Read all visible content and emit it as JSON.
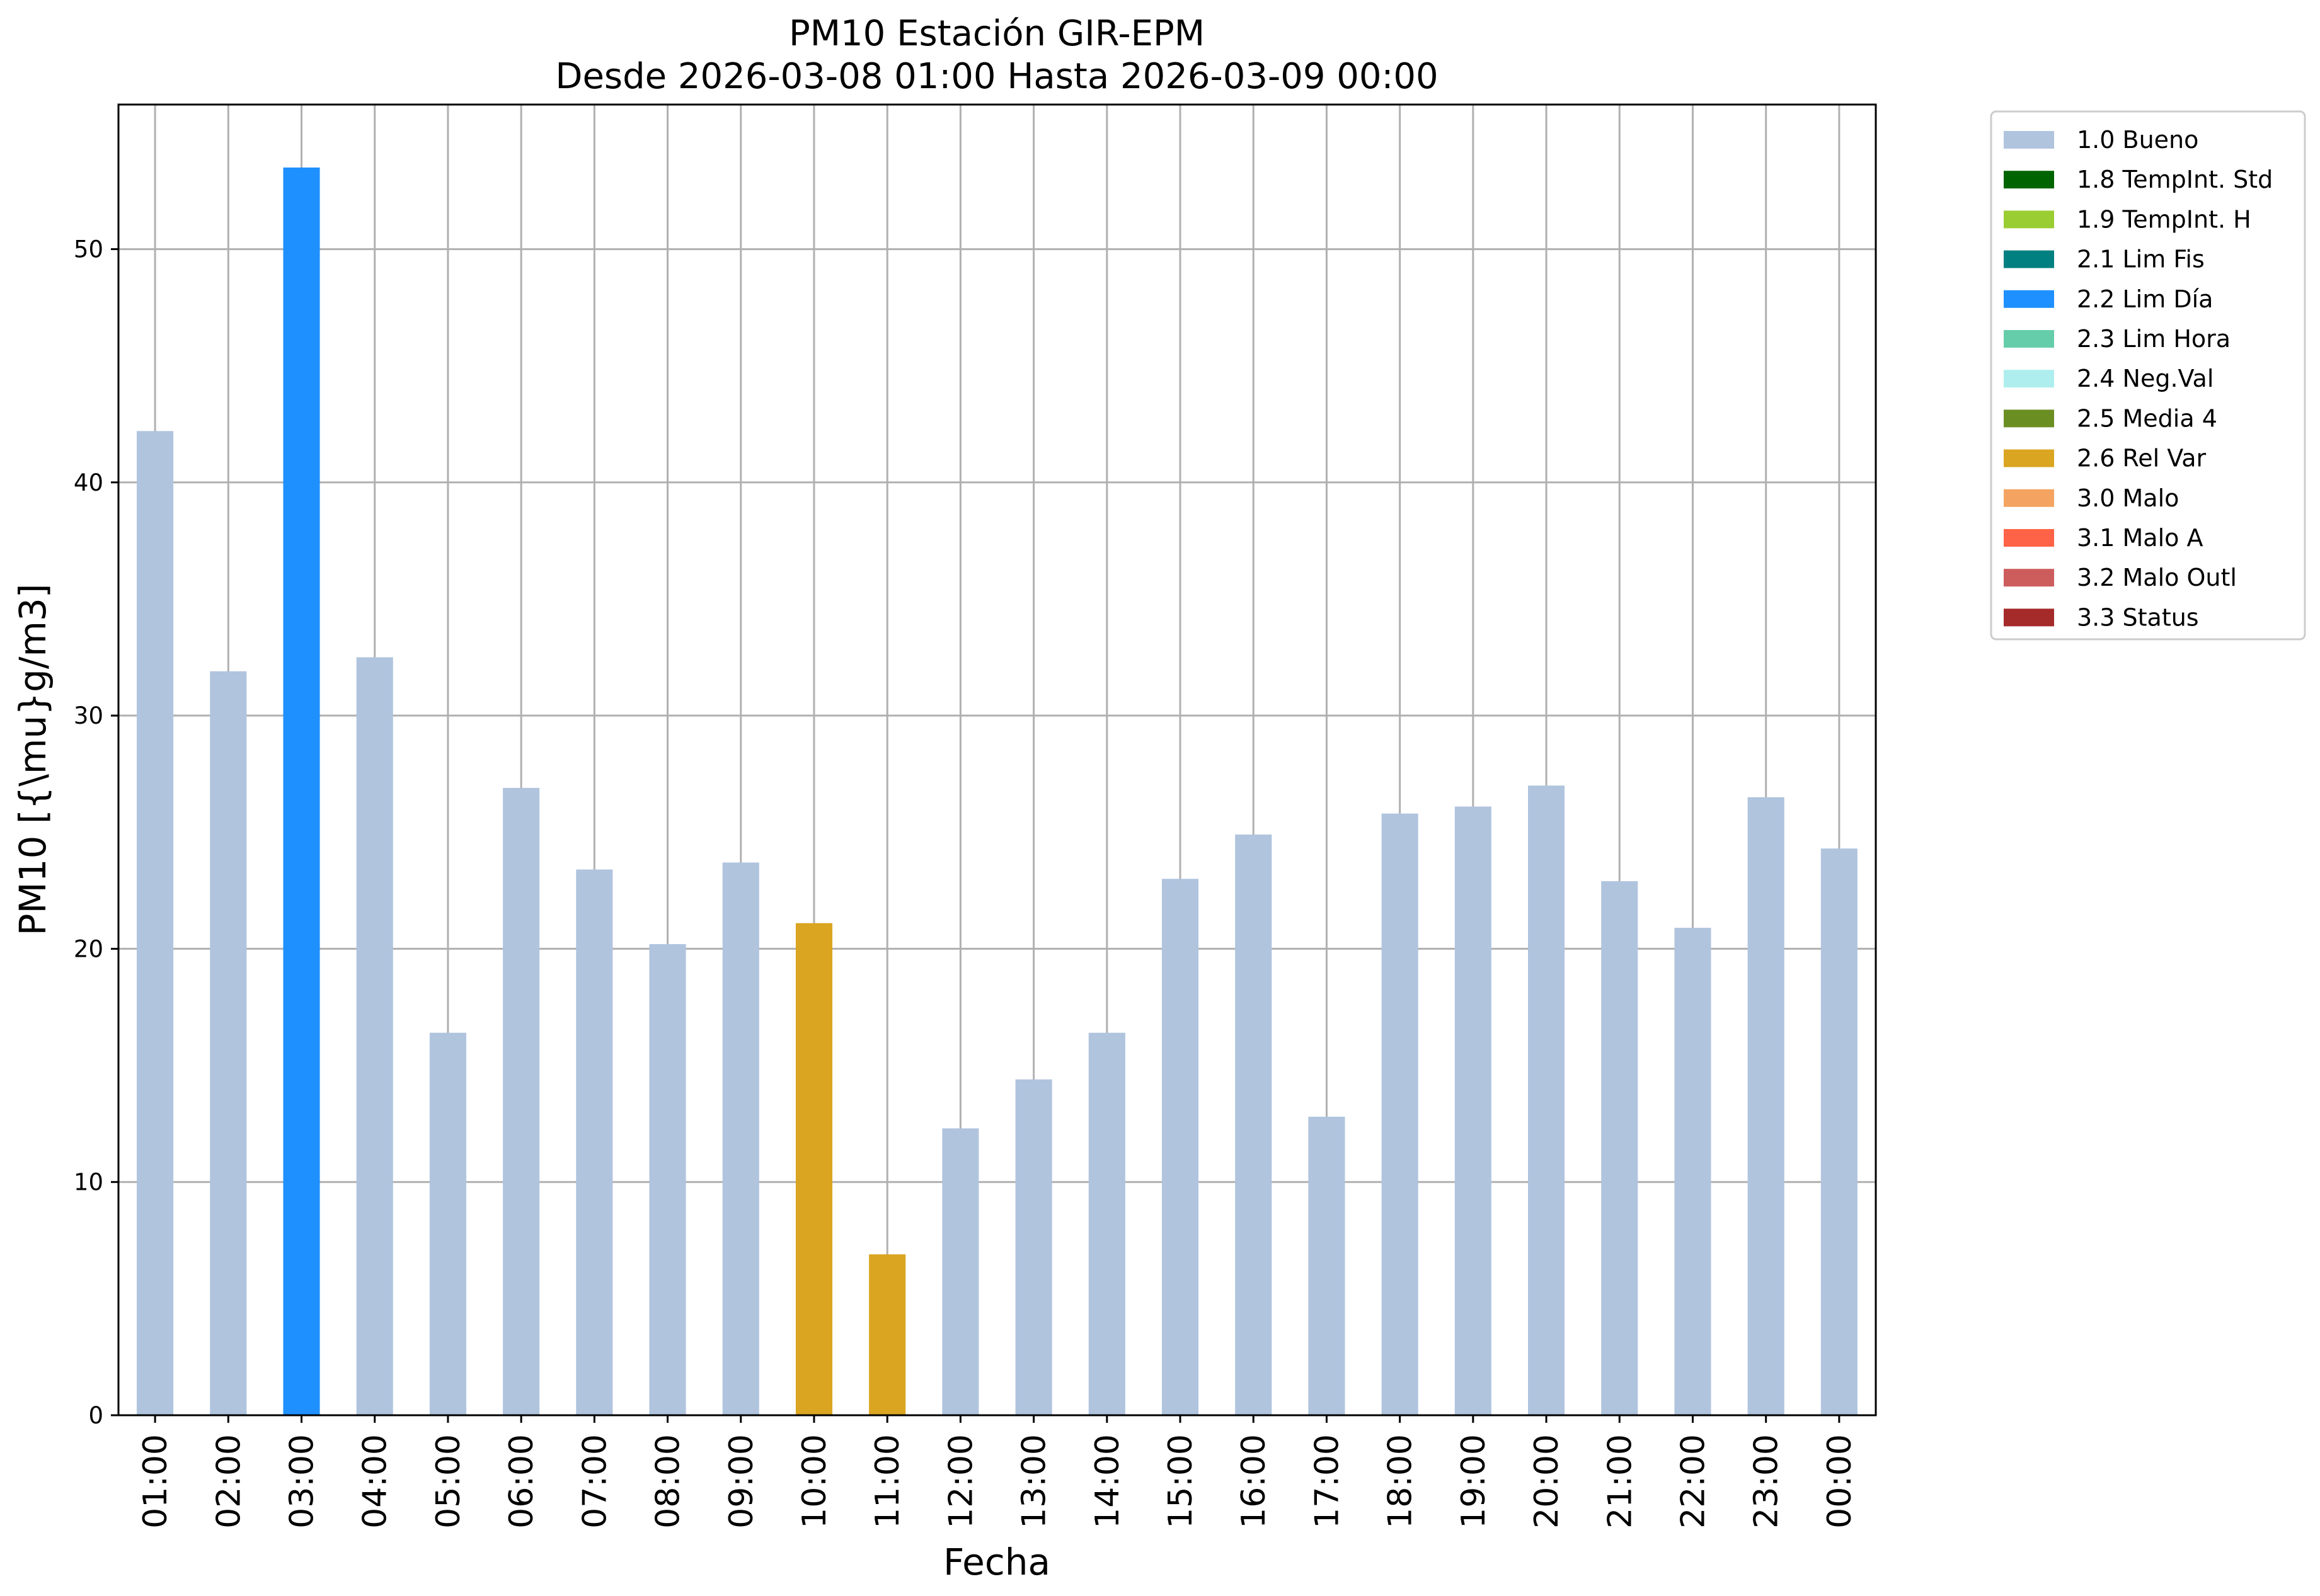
{
  "chart_data": {
    "type": "bar",
    "title": "PM10 Estación GIR-EPM",
    "subtitle": "Desde 2026-03-08 01:00 Hasta 2026-03-09 00:00",
    "xlabel": "Fecha",
    "ylabel": "PM10 [{\\mu}g/m3]",
    "ylim": [
      0,
      56.2
    ],
    "yticks": [
      0,
      10,
      20,
      30,
      40,
      50
    ],
    "grid": true,
    "legend_position": "outside-top-right",
    "categories": [
      "01:00",
      "02:00",
      "03:00",
      "04:00",
      "05:00",
      "06:00",
      "07:00",
      "08:00",
      "09:00",
      "10:00",
      "11:00",
      "12:00",
      "13:00",
      "14:00",
      "15:00",
      "16:00",
      "17:00",
      "18:00",
      "19:00",
      "20:00",
      "21:00",
      "22:00",
      "23:00",
      "00:00"
    ],
    "values": [
      42.2,
      31.9,
      53.5,
      32.5,
      16.4,
      26.9,
      23.4,
      20.2,
      23.7,
      21.1,
      6.9,
      12.3,
      14.4,
      16.4,
      23.0,
      24.9,
      12.8,
      25.8,
      26.1,
      27.0,
      22.9,
      20.9,
      26.5,
      24.3
    ],
    "flags": [
      "1.0 Bueno",
      "1.0 Bueno",
      "2.2 Lim Día",
      "1.0 Bueno",
      "1.0 Bueno",
      "1.0 Bueno",
      "1.0 Bueno",
      "1.0 Bueno",
      "1.0 Bueno",
      "2.6 Rel Var",
      "2.6 Rel Var",
      "1.0 Bueno",
      "1.0 Bueno",
      "1.0 Bueno",
      "1.0 Bueno",
      "1.0 Bueno",
      "1.0 Bueno",
      "1.0 Bueno",
      "1.0 Bueno",
      "1.0 Bueno",
      "1.0 Bueno",
      "1.0 Bueno",
      "1.0 Bueno",
      "1.0 Bueno"
    ],
    "legend": [
      {
        "label": "1.0 Bueno",
        "color": "#b0c4de"
      },
      {
        "label": "1.8 TempInt. Std",
        "color": "#006400"
      },
      {
        "label": "1.9 TempInt. H",
        "color": "#9acd32"
      },
      {
        "label": "2.1 Lim Fis",
        "color": "#008080"
      },
      {
        "label": "2.2 Lim Día",
        "color": "#1e90ff"
      },
      {
        "label": "2.3 Lim Hora",
        "color": "#66cdaa"
      },
      {
        "label": "2.4 Neg.Val",
        "color": "#afeeee"
      },
      {
        "label": "2.5 Media 4",
        "color": "#6b8e23"
      },
      {
        "label": "2.6 Rel Var",
        "color": "#daa520"
      },
      {
        "label": "3.0 Malo",
        "color": "#f4a460"
      },
      {
        "label": "3.1 Malo A",
        "color": "#ff6347"
      },
      {
        "label": "3.2 Malo Outl",
        "color": "#cd5c5c"
      },
      {
        "label": "3.3 Status",
        "color": "#a52a2a"
      }
    ]
  }
}
